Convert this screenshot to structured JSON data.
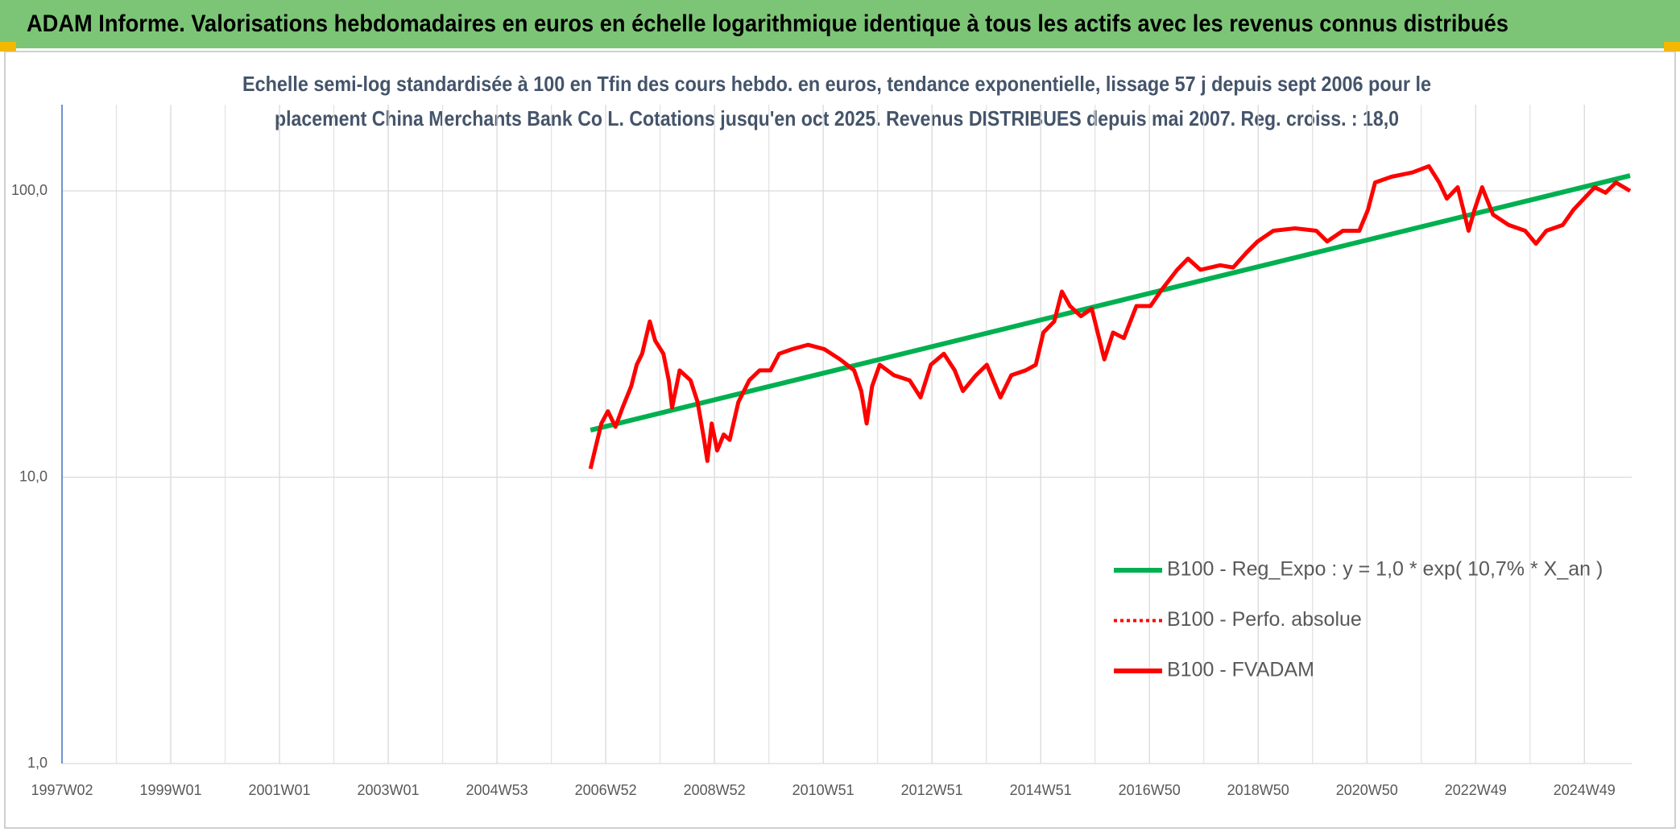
{
  "chart_data": {
    "type": "line",
    "title": "ADAM Informe. Valorisations hebdomadaires en euros en échelle logarithmique identique à tous les actifs avec les revenus connus distribués",
    "subtitle": [
      "Echelle semi-log standardisée à 100 en Tfin des cours hebdo. en euros, tendance exponentielle, lissage 57 j depuis sept 2006 pour le",
      "placement China Merchants Bank Co L. Cotations jusqu'en oct 2025. Revenus DISTRIBUES depuis mai 2007. Reg. croiss. : 18,0"
    ],
    "log_y": true,
    "grid": true,
    "legend": "right",
    "xlim": [
      1997.02,
      2025.89
    ],
    "xticks": [
      {
        "value": 1997.02,
        "label": "1997W02"
      },
      {
        "value": 1999.02,
        "label": "1999W01"
      },
      {
        "value": 2001.02,
        "label": "2001W01"
      },
      {
        "value": 2003.02,
        "label": "2003W01"
      },
      {
        "value": 2005.02,
        "label": "2004W53"
      },
      {
        "value": 2007.02,
        "label": "2006W52"
      },
      {
        "value": 2009.02,
        "label": "2008W52"
      },
      {
        "value": 2011.02,
        "label": "2010W51"
      },
      {
        "value": 2013.02,
        "label": "2012W51"
      },
      {
        "value": 2015.02,
        "label": "2014W51"
      },
      {
        "value": 2017.02,
        "label": "2016W50"
      },
      {
        "value": 2019.02,
        "label": "2018W50"
      },
      {
        "value": 2021.02,
        "label": "2020W50"
      },
      {
        "value": 2023.02,
        "label": "2022W49"
      },
      {
        "value": 2025.02,
        "label": "2024W49"
      }
    ],
    "ylim": [
      1,
      200
    ],
    "yticks": [
      {
        "value": 1,
        "label": "1,0"
      },
      {
        "value": 10,
        "label": "10,0"
      },
      {
        "value": 100,
        "label": "100,0"
      }
    ],
    "series": [
      {
        "name": "B100 - Reg_Expo : y = 1,0 * exp( 10,7% *  X_an )",
        "color": "#00b050",
        "style": "solid",
        "x": [
          2006.74,
          2025.86
        ],
        "values": [
          14.6,
          113
        ]
      },
      {
        "name": "B100 - Perfo. absolue",
        "color": "#ff0000",
        "style": "dotted",
        "x": [],
        "values": []
      },
      {
        "name": "B100 - FVADAM",
        "color": "#ff0000",
        "style": "solid",
        "x": [
          2006.74,
          2006.82,
          2006.94,
          2007.06,
          2007.2,
          2007.33,
          2007.49,
          2007.59,
          2007.69,
          2007.83,
          2007.93,
          2008.08,
          2008.18,
          2008.24,
          2008.38,
          2008.58,
          2008.71,
          2008.83,
          2008.89,
          2008.97,
          2009.07,
          2009.19,
          2009.3,
          2009.46,
          2009.66,
          2009.85,
          2010.05,
          2010.21,
          2010.45,
          2010.74,
          2011.04,
          2011.33,
          2011.59,
          2011.72,
          2011.82,
          2011.92,
          2012.06,
          2012.32,
          2012.61,
          2012.81,
          2013.0,
          2013.24,
          2013.44,
          2013.59,
          2013.83,
          2014.03,
          2014.28,
          2014.48,
          2014.74,
          2014.93,
          2015.07,
          2015.27,
          2015.41,
          2015.56,
          2015.76,
          2015.96,
          2016.19,
          2016.35,
          2016.55,
          2016.78,
          2017.04,
          2017.24,
          2017.53,
          2017.73,
          2017.96,
          2018.32,
          2018.56,
          2018.81,
          2019.01,
          2019.3,
          2019.7,
          2020.09,
          2020.29,
          2020.58,
          2020.88,
          2021.04,
          2021.17,
          2021.47,
          2021.86,
          2022.16,
          2022.35,
          2022.49,
          2022.69,
          2022.89,
          2023.0,
          2023.14,
          2023.34,
          2023.63,
          2023.93,
          2024.13,
          2024.32,
          2024.62,
          2024.82,
          2025.21,
          2025.41,
          2025.6,
          2025.86
        ],
        "values": [
          10.7,
          12.4,
          15.4,
          17,
          15,
          17.5,
          20.8,
          24.7,
          27,
          35,
          30,
          27,
          21.8,
          17.5,
          23.6,
          21.8,
          18.3,
          13.5,
          11.4,
          15.4,
          12.4,
          14.1,
          13.5,
          18.3,
          21.8,
          23.6,
          23.6,
          27,
          28,
          29,
          28,
          25.8,
          23.6,
          20,
          15.4,
          20.8,
          24.7,
          22.7,
          21.8,
          19,
          24.7,
          27,
          23.6,
          20,
          22.7,
          24.7,
          19,
          22.7,
          23.6,
          24.7,
          32,
          35,
          44.5,
          39.6,
          36.5,
          38.8,
          25.8,
          32,
          30.6,
          39.6,
          39.6,
          45,
          53,
          58,
          53,
          55,
          54,
          61,
          66.6,
          72.6,
          74,
          72.6,
          66.6,
          72.6,
          72.6,
          86,
          107,
          112,
          116,
          122,
          107,
          94,
          103,
          72.6,
          86,
          103,
          82.6,
          76,
          72.6,
          65.4,
          72.6,
          76,
          86,
          103,
          98.5,
          107,
          100
        ]
      }
    ]
  }
}
